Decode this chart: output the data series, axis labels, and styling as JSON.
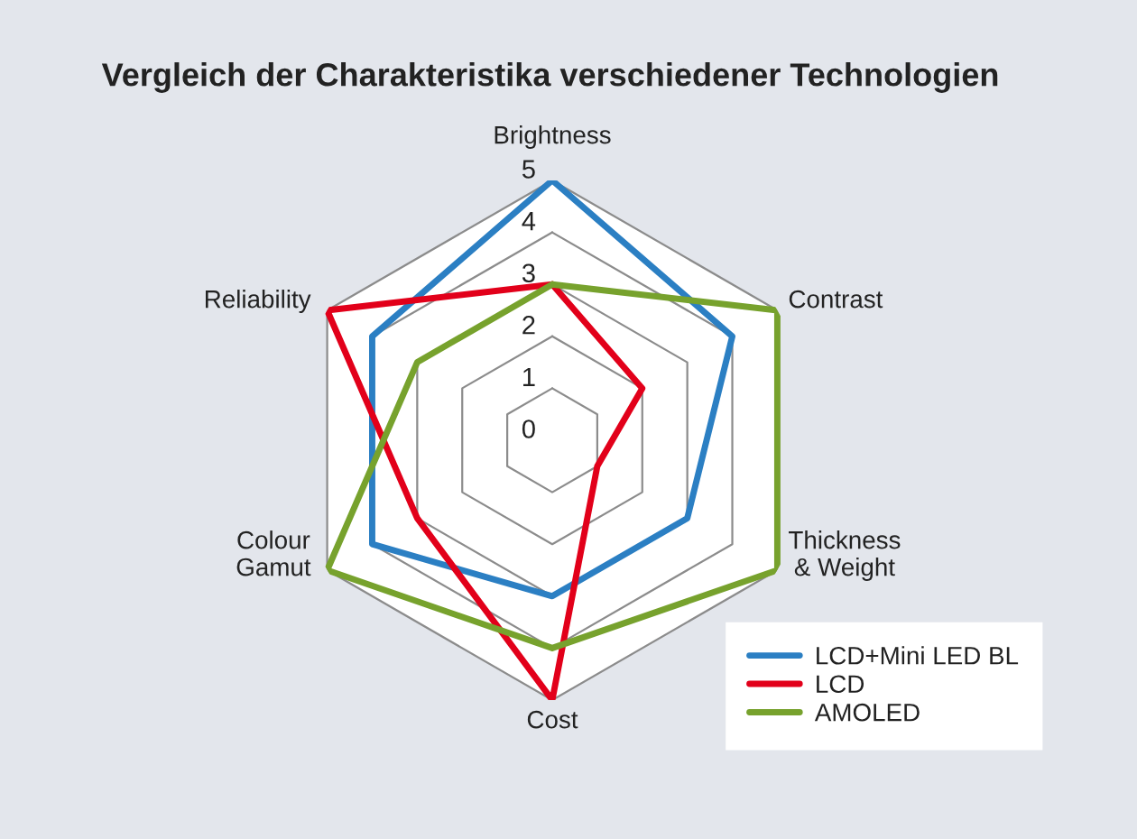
{
  "chart_data": {
    "type": "radar",
    "title": "Vergleich der Charakteristika verschiedener Technologien",
    "categories": [
      "Brightness",
      "Contrast",
      "Thickness\n& Weight",
      "Cost",
      "Colour\nGamut",
      "Reliability"
    ],
    "ylim": [
      0,
      5
    ],
    "yticks": [
      0,
      1,
      2,
      3,
      4,
      5
    ],
    "grid": true,
    "legend": "bottom right",
    "series": [
      {
        "name": "LCD+Mini LED BL",
        "color": "#2b7fc3",
        "values": [
          5,
          4,
          3,
          3,
          4,
          4
        ]
      },
      {
        "name": "LCD",
        "color": "#e2001a",
        "values": [
          3,
          2,
          1,
          5,
          3,
          5
        ]
      },
      {
        "name": "AMOLED",
        "color": "#77a22d",
        "values": [
          3,
          5,
          5,
          4,
          5,
          3
        ]
      }
    ]
  }
}
